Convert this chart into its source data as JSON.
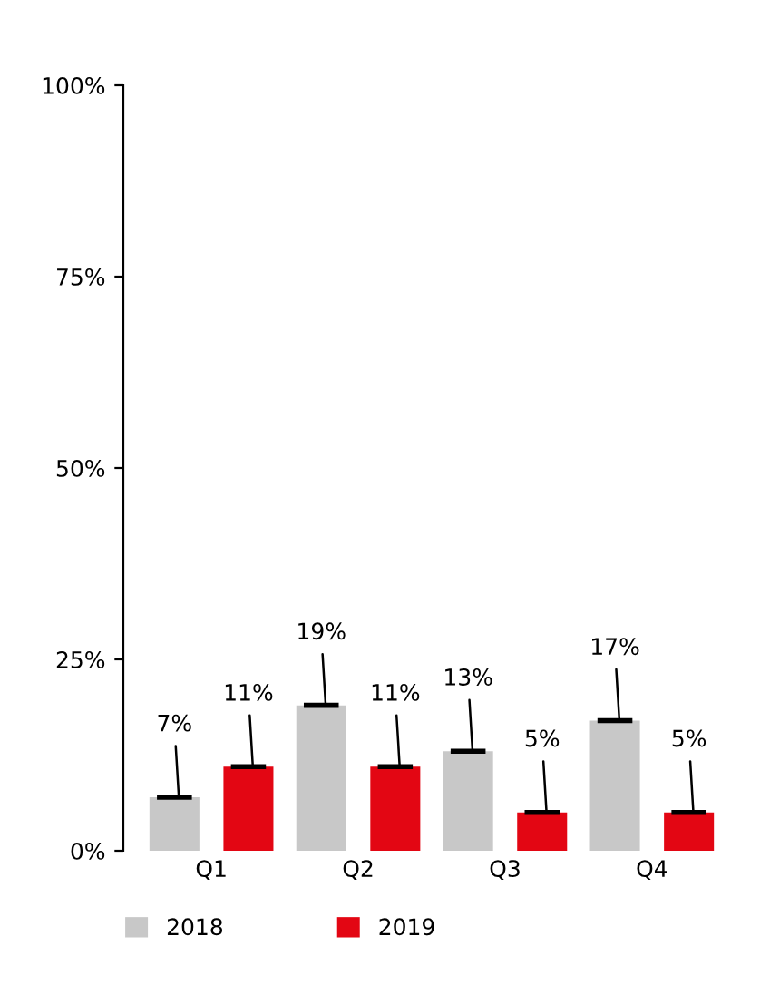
{
  "chart_data": {
    "type": "bar",
    "categories": [
      "Q1",
      "Q2",
      "Q3",
      "Q4"
    ],
    "series": [
      {
        "name": "2018",
        "color": "#c8c8c8",
        "values": [
          7,
          19,
          13,
          17
        ],
        "value_labels": [
          "7%",
          "19%",
          "13%",
          "17%"
        ]
      },
      {
        "name": "2019",
        "color": "#e30613",
        "values": [
          11,
          11,
          5,
          5
        ],
        "value_labels": [
          "11%",
          "11%",
          "5%",
          "5%"
        ]
      }
    ],
    "ylim": [
      0,
      100
    ],
    "yticks": [
      {
        "value": 0,
        "label": "0%"
      },
      {
        "value": 25,
        "label": "25%"
      },
      {
        "value": 50,
        "label": "50%"
      },
      {
        "value": 75,
        "label": "75%"
      },
      {
        "value": 100,
        "label": "100%"
      }
    ],
    "grid": false,
    "legend": "bottom"
  }
}
